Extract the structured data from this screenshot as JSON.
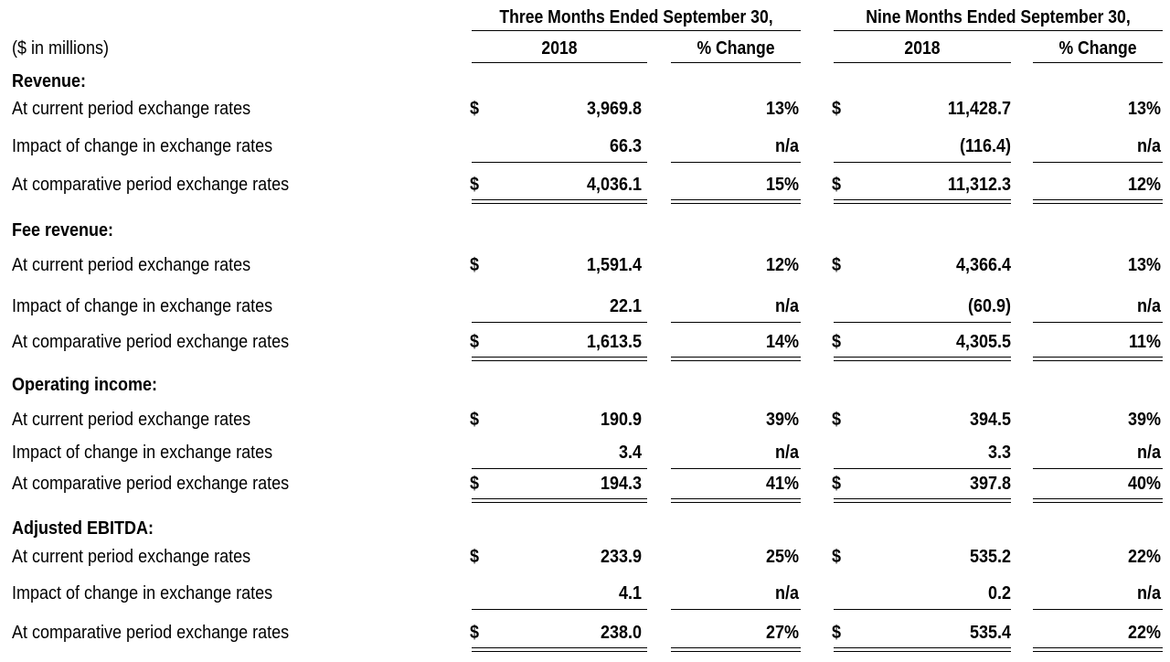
{
  "headers": {
    "three_months": "Three Months Ended September 30,",
    "nine_months": "Nine Months Ended September 30,",
    "year": "2018",
    "pct_change": "% Change",
    "units": "($ in millions)"
  },
  "currency": "$",
  "row_labels": {
    "current": "At current period exchange rates",
    "impact": "Impact of change in exchange rates",
    "comparative": "At comparative period exchange rates"
  },
  "sections": [
    {
      "title": "Revenue:",
      "rows": [
        {
          "q3_value": "3,969.8",
          "q3_pct": "13%",
          "ytd_value": "11,428.7",
          "ytd_pct": "13%"
        },
        {
          "q3_value": "66.3",
          "q3_pct": "n/a",
          "ytd_value": "(116.4)",
          "ytd_pct": "n/a"
        },
        {
          "q3_value": "4,036.1",
          "q3_pct": "15%",
          "ytd_value": "11,312.3",
          "ytd_pct": "12%"
        }
      ]
    },
    {
      "title": "Fee revenue:",
      "rows": [
        {
          "q3_value": "1,591.4",
          "q3_pct": "12%",
          "ytd_value": "4,366.4",
          "ytd_pct": "13%"
        },
        {
          "q3_value": "22.1",
          "q3_pct": "n/a",
          "ytd_value": "(60.9)",
          "ytd_pct": "n/a"
        },
        {
          "q3_value": "1,613.5",
          "q3_pct": "14%",
          "ytd_value": "4,305.5",
          "ytd_pct": "11%"
        }
      ]
    },
    {
      "title": "Operating income:",
      "rows": [
        {
          "q3_value": "190.9",
          "q3_pct": "39%",
          "ytd_value": "394.5",
          "ytd_pct": "39%"
        },
        {
          "q3_value": "3.4",
          "q3_pct": "n/a",
          "ytd_value": "3.3",
          "ytd_pct": "n/a"
        },
        {
          "q3_value": "194.3",
          "q3_pct": "41%",
          "ytd_value": "397.8",
          "ytd_pct": "40%"
        }
      ]
    },
    {
      "title": "Adjusted EBITDA:",
      "rows": [
        {
          "q3_value": "233.9",
          "q3_pct": "25%",
          "ytd_value": "535.2",
          "ytd_pct": "22%"
        },
        {
          "q3_value": "4.1",
          "q3_pct": "n/a",
          "ytd_value": "0.2",
          "ytd_pct": "n/a"
        },
        {
          "q3_value": "238.0",
          "q3_pct": "27%",
          "ytd_value": "535.4",
          "ytd_pct": "22%"
        }
      ]
    }
  ]
}
